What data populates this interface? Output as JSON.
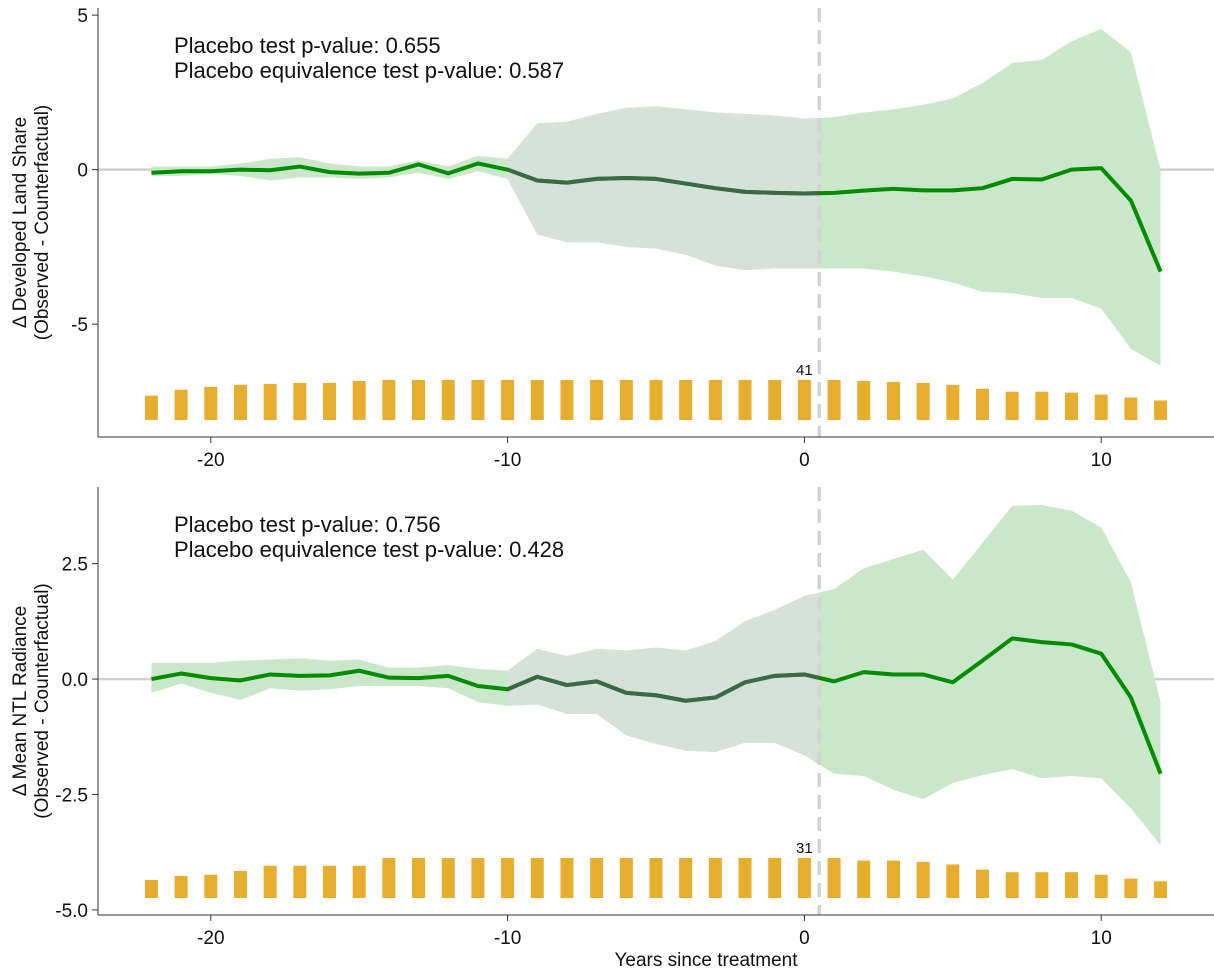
{
  "chart_data": [
    {
      "type": "line-ribbon",
      "ylabel": [
        "Δ Developed Land Share",
        "(Observed - Counterfactual)"
      ],
      "annotations": [
        "Placebo test p-value: 0.655",
        "Placebo equivalence test p-value: 0.587"
      ],
      "x": [
        -22,
        -21,
        -20,
        -19,
        -18,
        -17,
        -16,
        -15,
        -14,
        -13,
        -12,
        -11,
        -10,
        -9,
        -8,
        -7,
        -6,
        -5,
        -4,
        -3,
        -2,
        -1,
        0,
        1,
        2,
        3,
        4,
        5,
        6,
        7,
        8,
        9,
        10,
        11,
        12
      ],
      "values": [
        -0.1,
        -0.05,
        -0.05,
        0,
        -0.02,
        0.1,
        -0.08,
        -0.13,
        -0.1,
        0.17,
        -0.12,
        0.2,
        0,
        -0.35,
        -0.42,
        -0.3,
        -0.27,
        -0.3,
        -0.45,
        -0.6,
        -0.72,
        -0.75,
        -0.77,
        -0.75,
        -0.68,
        -0.62,
        -0.67,
        -0.67,
        -0.6,
        -0.3,
        -0.32,
        0,
        0.05,
        -1.0,
        -3.3
      ],
      "upper": [
        0.1,
        0.1,
        0.1,
        0.2,
        0.35,
        0.4,
        0.2,
        0.1,
        0.1,
        0.3,
        0.1,
        0.45,
        0.35,
        1.5,
        1.55,
        1.8,
        2.0,
        2.05,
        1.95,
        1.85,
        1.8,
        1.75,
        1.65,
        1.7,
        1.85,
        1.95,
        2.1,
        2.3,
        2.8,
        3.45,
        3.55,
        4.15,
        4.55,
        3.8,
        0
      ],
      "lower": [
        -0.2,
        -0.2,
        -0.15,
        -0.2,
        -0.35,
        -0.25,
        -0.25,
        -0.3,
        -0.25,
        -0.1,
        -0.3,
        -0.05,
        -0.3,
        -2.1,
        -2.35,
        -2.35,
        -2.5,
        -2.55,
        -2.75,
        -3.1,
        -3.25,
        -3.2,
        -3.2,
        -3.2,
        -3.2,
        -3.3,
        -3.45,
        -3.65,
        -3.95,
        -4.0,
        -4.15,
        -4.15,
        -4.5,
        -5.8,
        -6.35
      ],
      "counts": [
        25,
        31,
        34,
        36,
        37,
        38,
        38,
        40,
        41,
        41,
        41,
        41,
        41,
        41,
        41,
        41,
        41,
        41,
        41,
        41,
        41,
        41,
        41,
        41,
        40,
        39,
        38,
        36,
        32,
        29,
        29,
        28,
        26,
        23,
        20
      ],
      "labeled_x": 0,
      "color": "#008b00",
      "band_color": "#cae8c9",
      "bar_color": "#e6ae2e",
      "highlight": {
        "from": -10,
        "to": 0.5,
        "line_color": "#3b6a45",
        "band_color": "#d6e2d9"
      },
      "vline": 0.5,
      "xlim": [
        -23.8,
        13.8
      ],
      "xticks": [
        -20,
        -10,
        0,
        10
      ],
      "ylim": [
        -8.65,
        5.23
      ],
      "yticks": [
        -5,
        0,
        5
      ]
    },
    {
      "type": "line-ribbon",
      "ylabel": [
        "Δ Mean NTL Radiance",
        "(Observed - Counterfactual)"
      ],
      "xlabel": "Years since treatment",
      "annotations": [
        "Placebo test p-value: 0.756",
        "Placebo equivalence test p-value: 0.428"
      ],
      "x": [
        -22,
        -21,
        -20,
        -19,
        -18,
        -17,
        -16,
        -15,
        -14,
        -13,
        -12,
        -11,
        -10,
        -9,
        -8,
        -7,
        -6,
        -5,
        -4,
        -3,
        -2,
        -1,
        0,
        1,
        2,
        3,
        4,
        5,
        6,
        7,
        8,
        9,
        10,
        11,
        12
      ],
      "values": [
        0,
        0.12,
        0.02,
        -0.03,
        0.1,
        0.07,
        0.08,
        0.18,
        0.03,
        0.02,
        0.07,
        -0.15,
        -0.22,
        0.05,
        -0.13,
        -0.05,
        -0.3,
        -0.35,
        -0.47,
        -0.4,
        -0.07,
        0.07,
        0.1,
        -0.05,
        0.15,
        0.1,
        0.1,
        -0.07,
        0.4,
        0.88,
        0.8,
        0.75,
        0.55,
        -0.4,
        -2.05
      ],
      "upper": [
        0.35,
        0.35,
        0.35,
        0.4,
        0.42,
        0.45,
        0.4,
        0.42,
        0.25,
        0.25,
        0.3,
        0.22,
        0.18,
        0.65,
        0.5,
        0.65,
        0.62,
        0.68,
        0.62,
        0.82,
        1.25,
        1.5,
        1.8,
        1.95,
        2.4,
        2.6,
        2.8,
        2.15,
        2.95,
        3.75,
        3.77,
        3.65,
        3.28,
        2.1,
        -0.5
      ],
      "lower": [
        -0.3,
        -0.1,
        -0.3,
        -0.45,
        -0.2,
        -0.25,
        -0.22,
        -0.15,
        -0.15,
        -0.15,
        -0.2,
        -0.5,
        -0.58,
        -0.55,
        -0.75,
        -0.75,
        -1.22,
        -1.4,
        -1.55,
        -1.58,
        -1.38,
        -1.38,
        -1.65,
        -2.05,
        -2.1,
        -2.4,
        -2.6,
        -2.25,
        -2.08,
        -1.95,
        -2.15,
        -2.1,
        -2.15,
        -2.8,
        -3.6
      ],
      "counts": [
        14,
        17,
        18,
        21,
        25,
        25,
        25,
        25,
        31,
        31,
        31,
        31,
        31,
        31,
        31,
        31,
        31,
        31,
        31,
        31,
        31,
        31,
        31,
        31,
        29,
        29,
        28,
        26,
        22,
        20,
        20,
        20,
        18,
        15,
        13
      ],
      "labeled_x": 0,
      "color": "#008b00",
      "band_color": "#cae8c9",
      "bar_color": "#e6ae2e",
      "highlight": {
        "from": -10,
        "to": 0.5,
        "line_color": "#3b6a45",
        "band_color": "#d6e2d9"
      },
      "vline": 0.5,
      "xlim": [
        -23.8,
        13.8
      ],
      "xticks": [
        -20,
        -10,
        0,
        10
      ],
      "ylim": [
        -5.11,
        4.16
      ],
      "yticks": [
        {
          "value": -5,
          "label": "-5.0"
        },
        -2.5,
        {
          "value": 0,
          "label": "0.0"
        },
        2.5
      ]
    }
  ]
}
